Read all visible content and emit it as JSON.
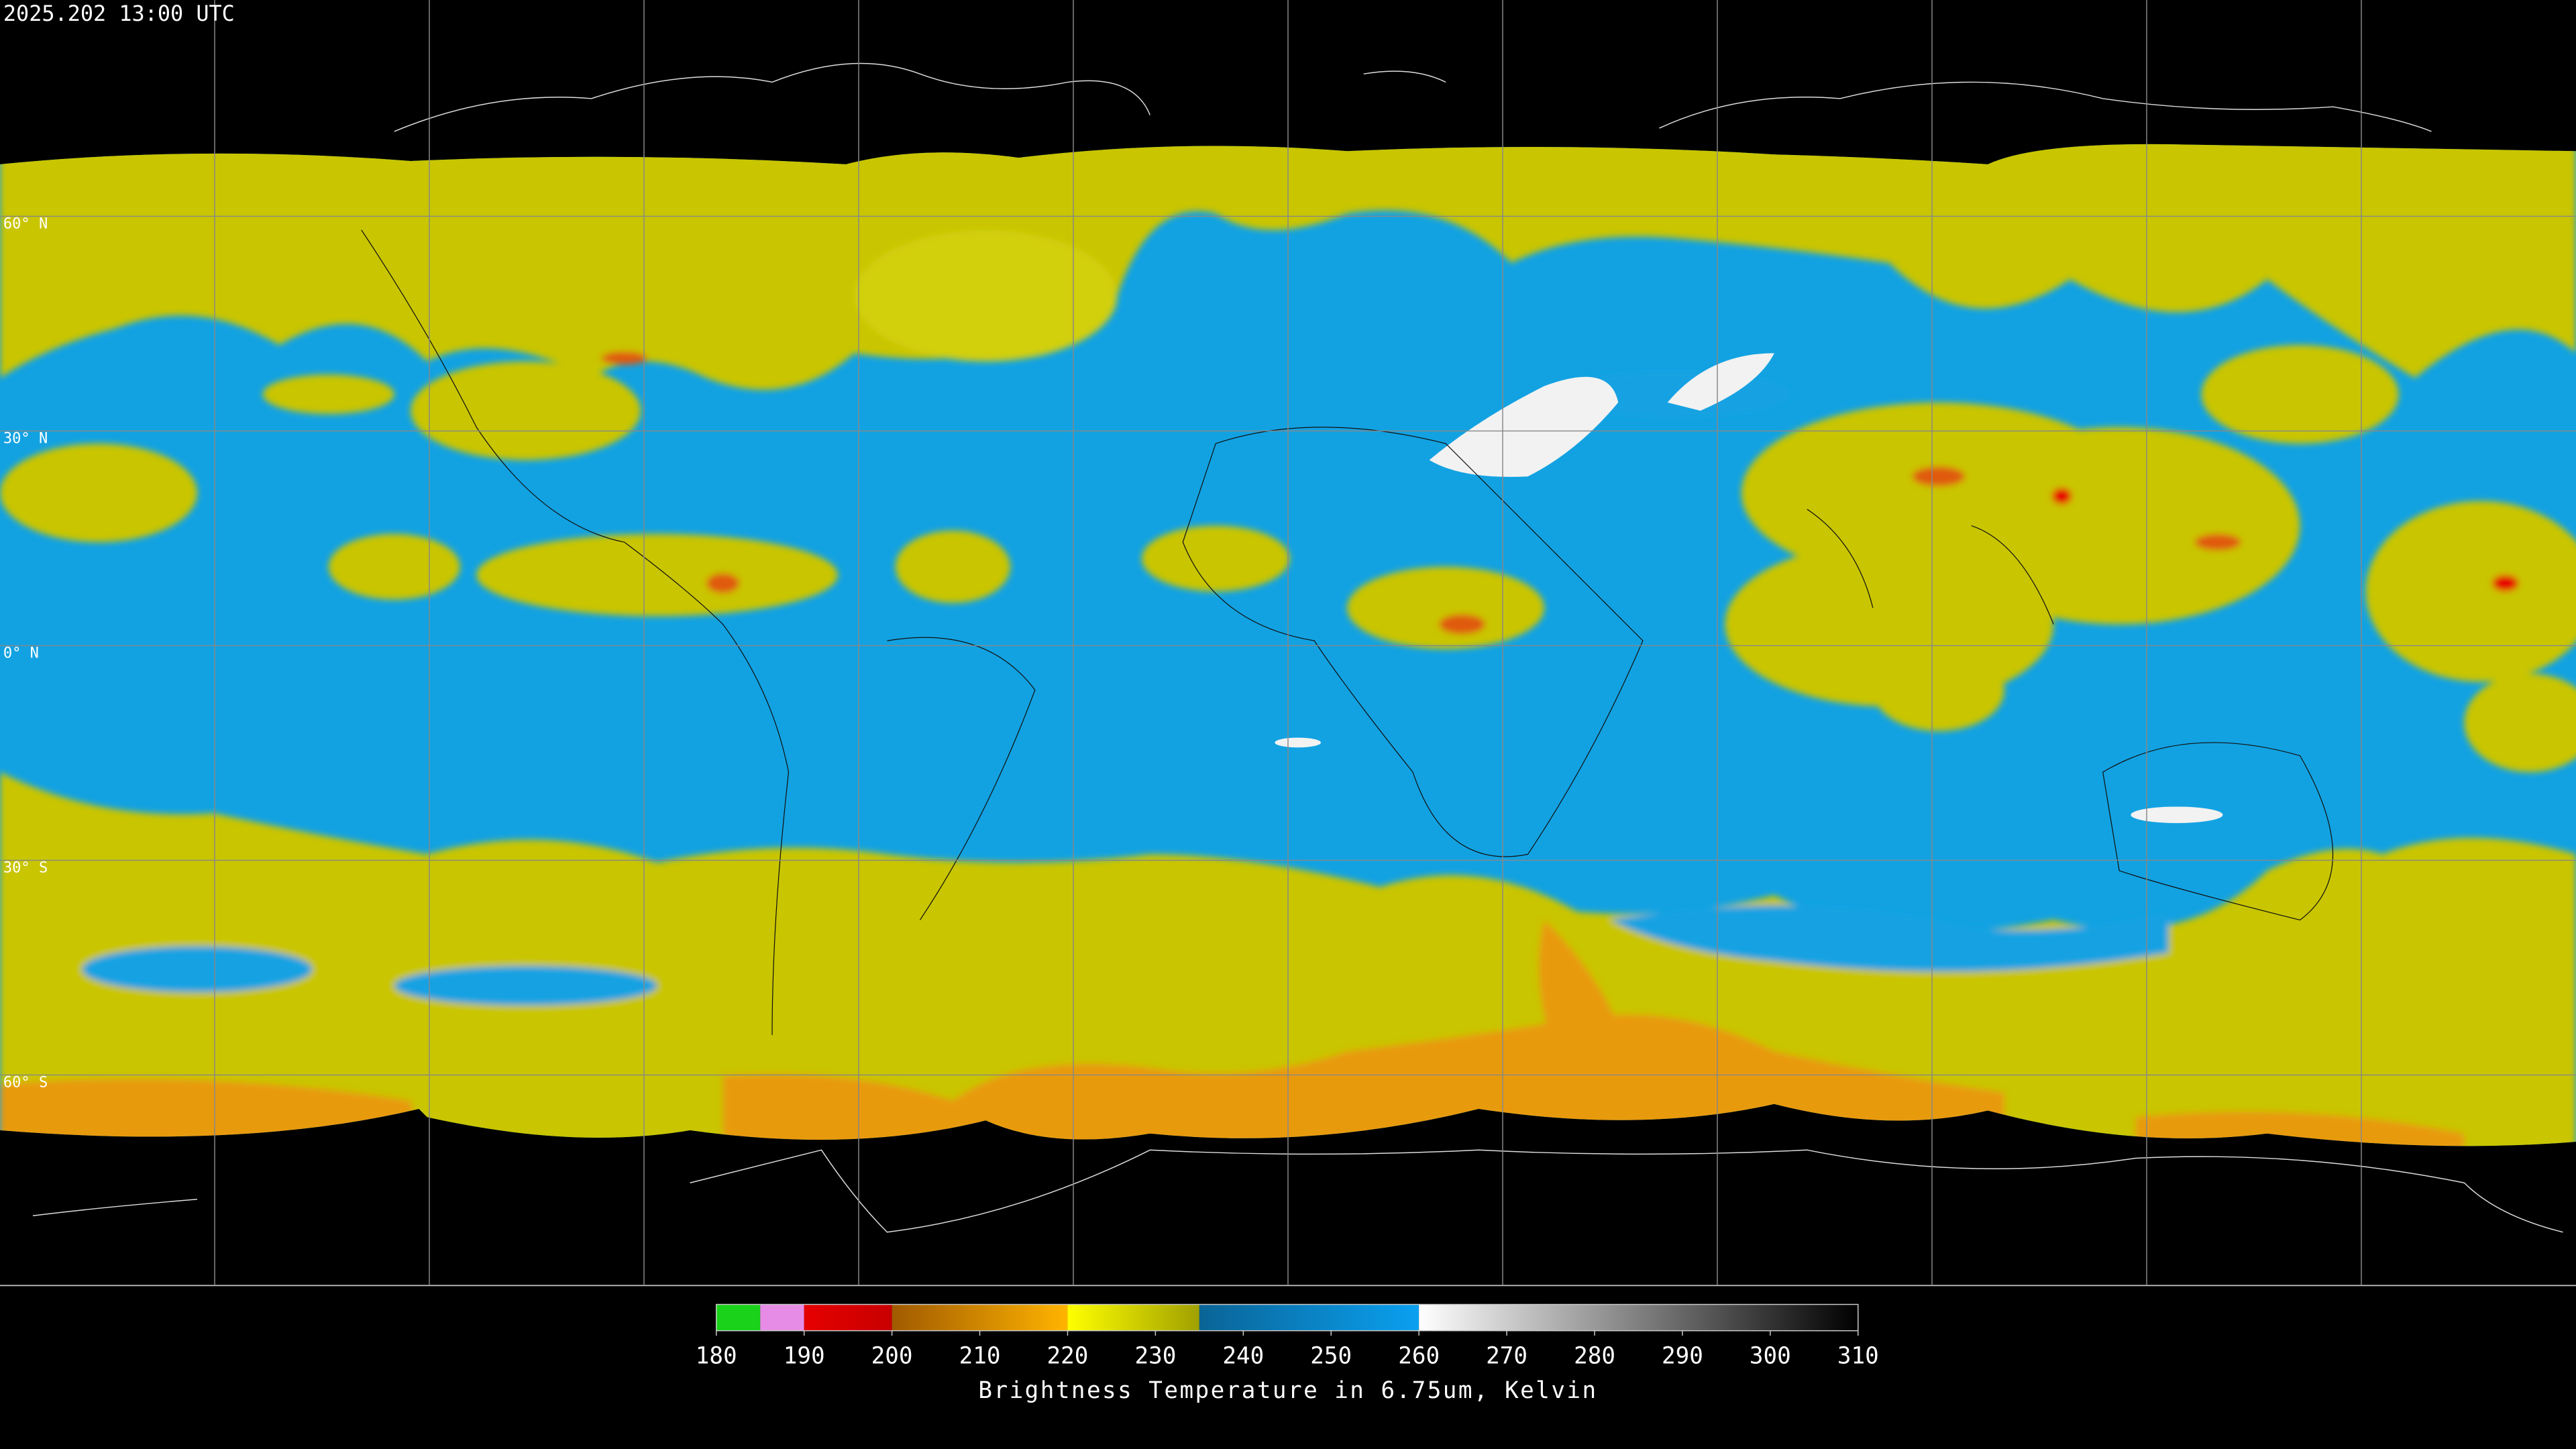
{
  "header": {
    "timestamp": "2025.202 13:00 UTC"
  },
  "map": {
    "lat_labels": [
      "60° N",
      "30° N",
      "0° N",
      "30° S",
      "60° S"
    ]
  },
  "colorbar": {
    "title": "Brightness Temperature in 6.75um, Kelvin",
    "range": [
      180,
      310
    ],
    "ticks": [
      180,
      190,
      200,
      210,
      220,
      230,
      240,
      250,
      260,
      270,
      280,
      290,
      300,
      310
    ],
    "segments": [
      {
        "from": 180,
        "to": 185,
        "colors": [
          "#19d219",
          "#19d219"
        ]
      },
      {
        "from": 185,
        "to": 190,
        "colors": [
          "#e68ce6",
          "#e68ce6"
        ]
      },
      {
        "from": 190,
        "to": 200,
        "colors": [
          "#e60000",
          "#c80000"
        ]
      },
      {
        "from": 200,
        "to": 220,
        "colors": [
          "#a05a00",
          "#ffb400"
        ]
      },
      {
        "from": 220,
        "to": 235,
        "colors": [
          "#ffff00",
          "#a0a000"
        ]
      },
      {
        "from": 235,
        "to": 260,
        "colors": [
          "#0a6496",
          "#0aa0f0"
        ]
      },
      {
        "from": 260,
        "to": 310,
        "colors": [
          "#ffffff",
          "#000000"
        ]
      }
    ]
  }
}
